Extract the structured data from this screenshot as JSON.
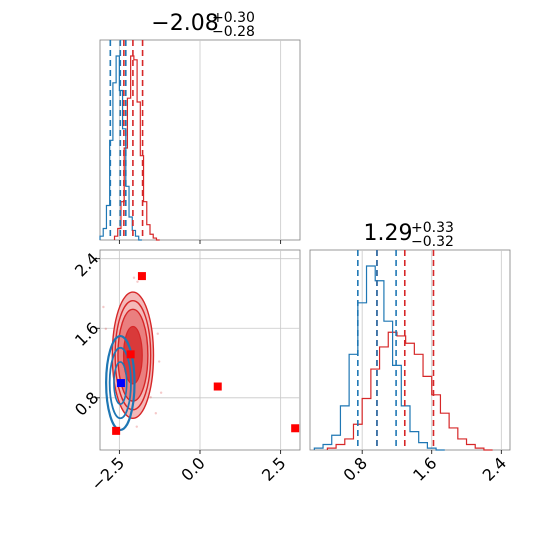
{
  "chart_data": {
    "type": "corner",
    "colors": {
      "red": "#d62728",
      "blue": "#1f77b4",
      "grid": "#c8c8c8"
    },
    "panels": [
      {
        "id": "hist-param1",
        "type": "histogram",
        "title": {
          "main": "−2.08",
          "sup": "+0.30",
          "sub": "−0.28"
        },
        "xlim": [
          -3.1,
          3.1
        ],
        "x_gridlines": [
          -2.5,
          0.0,
          2.5
        ],
        "red_quantiles": [
          -2.36,
          -2.08,
          -1.78
        ],
        "blue_quantiles": [
          -2.78,
          -2.47,
          -2.3
        ],
        "red_series": {
          "x": [
            -2.6,
            -2.5,
            -2.4,
            -2.3,
            -2.2,
            -2.1,
            -2.0,
            -1.9,
            -1.8,
            -1.7,
            -1.6,
            -1.5,
            -1.4,
            -1.3
          ],
          "counts": [
            2,
            6,
            20,
            48,
            74,
            96,
            94,
            72,
            44,
            20,
            8,
            3,
            1,
            0
          ]
        },
        "blue_series": {
          "x": [
            -3.05,
            -2.95,
            -2.85,
            -2.75,
            -2.65,
            -2.55,
            -2.45,
            -2.35,
            -2.25,
            -2.15,
            -2.05,
            -1.95,
            -1.85
          ],
          "counts": [
            2,
            6,
            18,
            52,
            82,
            96,
            78,
            58,
            28,
            12,
            5,
            2,
            0
          ]
        }
      },
      {
        "id": "hist-param2",
        "type": "histogram",
        "title": {
          "main": "1.29",
          "sup": "+0.33",
          "sub": "−0.32"
        },
        "xlim": [
          0.2,
          2.5
        ],
        "xticks": [
          "0.8",
          "1.6",
          "2.4"
        ],
        "x_tick_values": [
          0.8,
          1.6,
          2.4
        ],
        "red_quantiles": [
          0.97,
          1.29,
          1.62
        ],
        "blue_quantiles": [
          0.75,
          0.97,
          1.19
        ],
        "red_series": {
          "x": [
            0.45,
            0.55,
            0.65,
            0.75,
            0.85,
            0.95,
            1.05,
            1.15,
            1.25,
            1.35,
            1.45,
            1.55,
            1.65,
            1.75,
            1.85,
            1.95,
            2.05,
            2.15,
            2.25
          ],
          "counts": [
            1,
            3,
            6,
            14,
            28,
            44,
            56,
            64,
            62,
            58,
            52,
            40,
            30,
            20,
            12,
            6,
            3,
            1,
            0
          ]
        },
        "blue_series": {
          "x": [
            0.3,
            0.4,
            0.5,
            0.6,
            0.7,
            0.8,
            0.9,
            1.0,
            1.1,
            1.2,
            1.3,
            1.4,
            1.5,
            1.6,
            1.7
          ],
          "counts": [
            1,
            3,
            8,
            24,
            52,
            80,
            100,
            92,
            70,
            46,
            24,
            10,
            4,
            1,
            0
          ]
        }
      },
      {
        "id": "joint-param1-param2",
        "type": "contour-scatter",
        "xlim": [
          -3.1,
          3.1
        ],
        "ylim": [
          0.2,
          2.5
        ],
        "xticks": [
          "−2.5",
          "0.0",
          "2.5"
        ],
        "x_tick_values": [
          -2.5,
          0.0,
          2.5
        ],
        "yticks": [
          "0.8",
          "1.6",
          "2.4"
        ],
        "y_tick_values": [
          0.8,
          1.6,
          2.4
        ],
        "red_center": [
          -2.08,
          1.29
        ],
        "red_spread": [
          0.29,
          0.33
        ],
        "blue_center": [
          -2.47,
          0.97
        ],
        "blue_spread": [
          0.22,
          0.27
        ],
        "red_markers": [
          {
            "x": -1.8,
            "y": 2.2
          },
          {
            "x": -2.15,
            "y": 1.3
          },
          {
            "x": 0.55,
            "y": 0.93
          },
          {
            "x": 2.95,
            "y": 0.45
          },
          {
            "x": -2.6,
            "y": 0.42
          }
        ],
        "blue_markers": [
          {
            "x": -2.45,
            "y": 0.97
          }
        ]
      }
    ]
  }
}
